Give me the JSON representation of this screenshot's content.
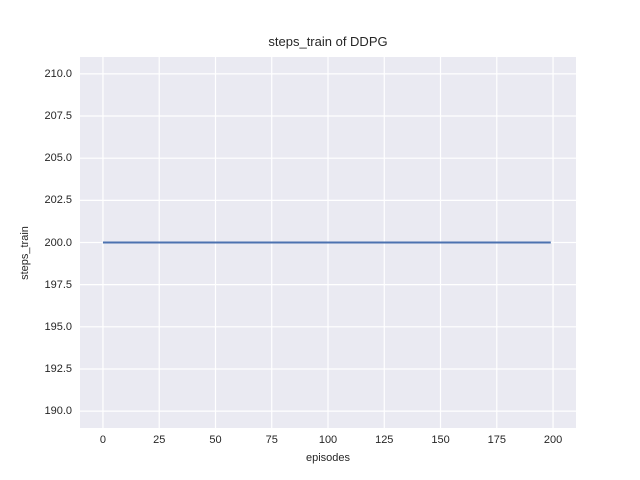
{
  "chart_data": {
    "type": "line",
    "title": "steps_train of DDPG",
    "xlabel": "episodes",
    "ylabel": "steps_train",
    "xlim": [
      -10.2,
      210.2
    ],
    "ylim": [
      189.0,
      211.0
    ],
    "xticks": {
      "values": [
        0,
        25,
        50,
        75,
        100,
        125,
        150,
        175,
        200
      ],
      "labels": [
        "0",
        "25",
        "50",
        "75",
        "100",
        "125",
        "150",
        "175",
        "200"
      ]
    },
    "yticks": {
      "values": [
        190.0,
        192.5,
        195.0,
        197.5,
        200.0,
        202.5,
        205.0,
        207.5,
        210.0
      ],
      "labels": [
        "190.0",
        "192.5",
        "195.0",
        "197.5",
        "200.0",
        "202.5",
        "205.0",
        "207.5",
        "210.0"
      ]
    },
    "grid": true,
    "legend": "none",
    "colors": {
      "plot_background": "#eaeaf2",
      "figure_background": "#ffffff",
      "grid": "#ffffff",
      "text": "#262626",
      "line": "#4c72b0"
    },
    "series": [
      {
        "name": "steps_train",
        "x": [
          0,
          199
        ],
        "y": [
          200,
          200
        ]
      }
    ]
  }
}
